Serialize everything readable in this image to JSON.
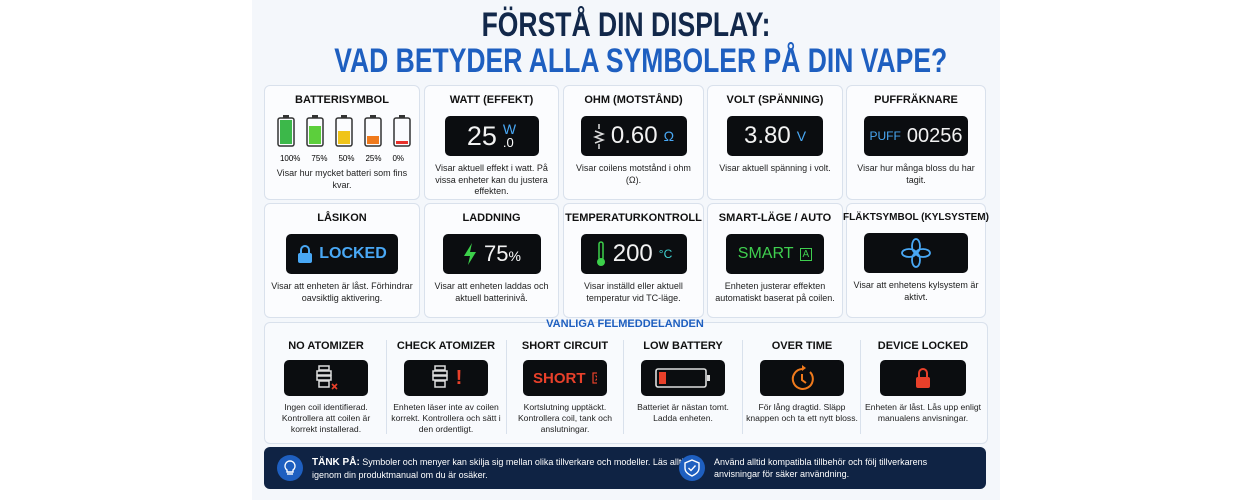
{
  "header": {
    "title_line1": "FÖRSTÅ DIN DISPLAY:",
    "title_line2": "VAD BETYDER ALLA SYMBOLER PÅ DIN VAPE?"
  },
  "row1": [
    {
      "title": "BATTERISYMBOL",
      "levels": [
        "100%",
        "75%",
        "50%",
        "25%",
        "0%"
      ],
      "desc": "Visar hur mycket batteri som fins kvar."
    },
    {
      "title": "WATT (EFFEKT)",
      "value": "25",
      "unit": "W",
      "decimal": ".0",
      "desc": "Visar aktuell effekt i watt. På vissa enheter kan du justera effekten."
    },
    {
      "title": "OHM (MOTSTÅND)",
      "value": "0.60",
      "unit": "Ω",
      "desc": "Visar coilens motstånd i ohm (Ω)."
    },
    {
      "title": "VOLT (SPÄNNING)",
      "value": "3.80",
      "unit": "V",
      "desc": "Visar aktuell spänning i volt."
    },
    {
      "title": "PUFFRÄKNARE",
      "label": "PUFF",
      "value": "00256",
      "desc": "Visar hur många bloss du har tagit."
    }
  ],
  "row2": [
    {
      "title": "LÅSIKON",
      "value": "LOCKED",
      "desc": "Visar att enheten är låst. Förhindrar oavsiktlig aktivering."
    },
    {
      "title": "LADDNING",
      "value": "75",
      "unit": "%",
      "desc": "Visar att enheten laddas och aktuell batterinivå."
    },
    {
      "title": "TEMPERATURKONTROLL",
      "value": "200",
      "unit": "°C",
      "desc": "Visar inställd eller aktuell temperatur vid TC-läge."
    },
    {
      "title": "SMART-LÄGE / AUTO",
      "value": "SMART",
      "badge": "A",
      "desc": "Enheten justerar effekten automatiskt baserat på coilen."
    },
    {
      "title": "FLÄKTSYMBOL (KYLSYSTEM)",
      "desc": "Visar att enhetens kylsystem är aktivt."
    }
  ],
  "errors": {
    "title": "VANLIGA FELMEDDELANDEN",
    "items": [
      {
        "title": "NO ATOMIZER",
        "desc": "Ingen coil identifierad. Kontrollera att coilen är korrekt installerad."
      },
      {
        "title": "CHECK ATOMIZER",
        "symbol": "!",
        "desc": "Enheten läser inte av coilen korrekt. Kontrollera och sätt i den ordentligt."
      },
      {
        "title": "SHORT CIRCUIT",
        "symbol": "SHORT",
        "desc": "Kortslutning upptäckt. Kontrollera coil, tank och anslutningar."
      },
      {
        "title": "LOW BATTERY",
        "desc": "Batteriet är nästan tomt. Ladda enheten."
      },
      {
        "title": "OVER TIME",
        "desc": "För lång dragtid. Släpp knappen och ta ett nytt bloss."
      },
      {
        "title": "DEVICE LOCKED",
        "desc": "Enheten är låst. Lås upp enligt manualens anvisningar."
      }
    ]
  },
  "footer": {
    "tip_label": "TÄNK PÅ:",
    "tip_text": "Symboler och menyer kan skilja sig mellan olika tillverkare och modeller. Läs alltid igenom din produktmanual om du är osäker.",
    "safety_text": "Använd alltid kompatibla tillbehör och följ tillverkarens anvisningar för säker användning."
  }
}
